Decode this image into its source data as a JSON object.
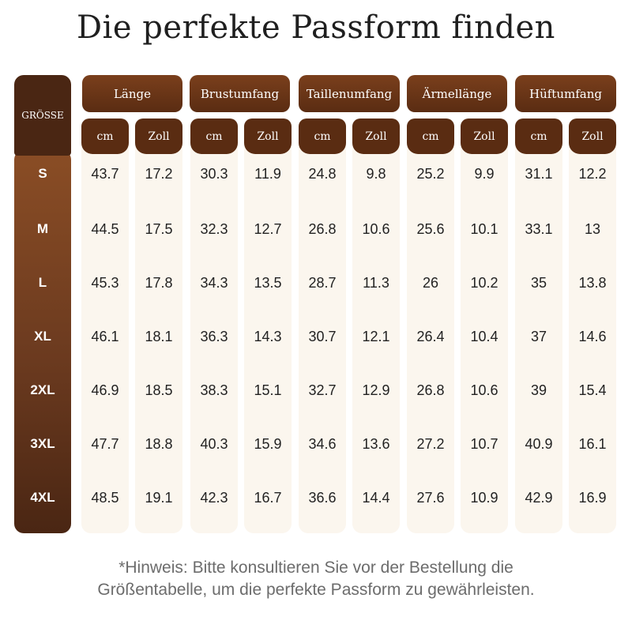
{
  "title": "Die perfekte Passform finden",
  "size_header": "GRÖSSE",
  "groups": [
    "Länge",
    "Brustumfang",
    "Taillenumfang",
    "Ärmellänge",
    "Hüftumfang"
  ],
  "units": [
    "cm",
    "Zoll"
  ],
  "sizes": [
    "S",
    "M",
    "L",
    "XL",
    "2XL",
    "3XL",
    "4XL"
  ],
  "rows": [
    [
      "43.7",
      "17.2",
      "30.3",
      "11.9",
      "24.8",
      "9.8",
      "25.2",
      "9.9",
      "31.1",
      "12.2"
    ],
    [
      "44.5",
      "17.5",
      "32.3",
      "12.7",
      "26.8",
      "10.6",
      "25.6",
      "10.1",
      "33.1",
      "13"
    ],
    [
      "45.3",
      "17.8",
      "34.3",
      "13.5",
      "28.7",
      "11.3",
      "26",
      "10.2",
      "35",
      "13.8"
    ],
    [
      "46.1",
      "18.1",
      "36.3",
      "14.3",
      "30.7",
      "12.1",
      "26.4",
      "10.4",
      "37",
      "14.6"
    ],
    [
      "46.9",
      "18.5",
      "38.3",
      "15.1",
      "32.7",
      "12.9",
      "26.8",
      "10.6",
      "39",
      "15.4"
    ],
    [
      "47.7",
      "18.8",
      "40.3",
      "15.9",
      "34.6",
      "13.6",
      "27.2",
      "10.7",
      "40.9",
      "16.1"
    ],
    [
      "48.5",
      "19.1",
      "42.3",
      "16.7",
      "36.6",
      "14.4",
      "27.6",
      "10.9",
      "42.9",
      "16.9"
    ]
  ],
  "note_line1": "*Hinweis: Bitte konsultieren Sie vor der Bestellung die",
  "note_line2": "Größentabelle, um die perfekte Passform zu gewährleisten.",
  "colors": {
    "brown_dark": "#4a2613",
    "brown_mid": "#6b3a1f",
    "cream": "#fbf6ee"
  }
}
